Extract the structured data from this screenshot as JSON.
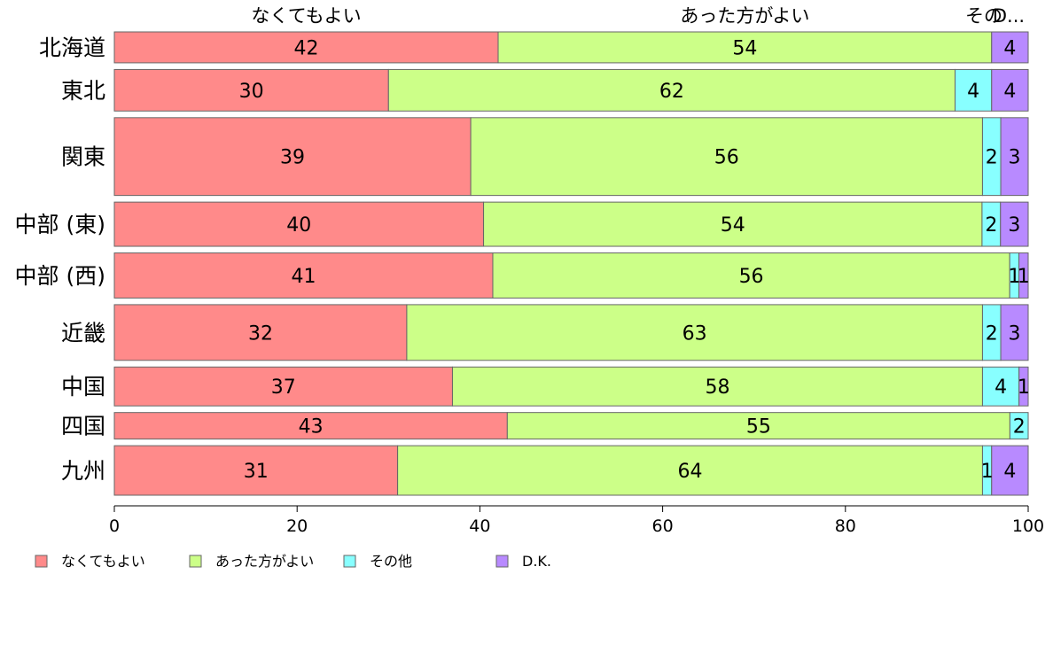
{
  "chart_data": {
    "type": "bar",
    "orientation": "horizontal",
    "stacked": true,
    "categories": [
      "北海道",
      "東北",
      "関東",
      "中部 (東)",
      "中部 (西)",
      "近畿",
      "中国",
      "四国",
      "九州"
    ],
    "series": [
      {
        "name": "なくてもよい",
        "color": "#FF8A8A",
        "values": [
          42,
          30,
          39,
          40,
          41,
          32,
          37,
          43,
          31
        ]
      },
      {
        "name": "あった方がよい",
        "color": "#CCFF88",
        "values": [
          54,
          62,
          56,
          54,
          56,
          63,
          58,
          55,
          64
        ]
      },
      {
        "name": "その他",
        "color": "#88FFFF",
        "values": [
          0,
          4,
          2,
          2,
          1,
          2,
          4,
          2,
          1
        ]
      },
      {
        "name": "D.K.",
        "color": "#B88AFF",
        "values": [
          4,
          4,
          3,
          3,
          1,
          3,
          1,
          0,
          4
        ]
      }
    ],
    "top_labels": [
      "なくてもよい",
      "あった方がよい",
      "その",
      "D..."
    ],
    "xlim": [
      0,
      100
    ],
    "xticks": [
      0,
      20,
      40,
      60,
      80,
      100
    ],
    "bar_widths_relative": [
      35,
      47,
      88,
      50,
      51,
      63,
      44,
      30,
      56
    ],
    "grid": false,
    "legend_position": "bottom"
  }
}
